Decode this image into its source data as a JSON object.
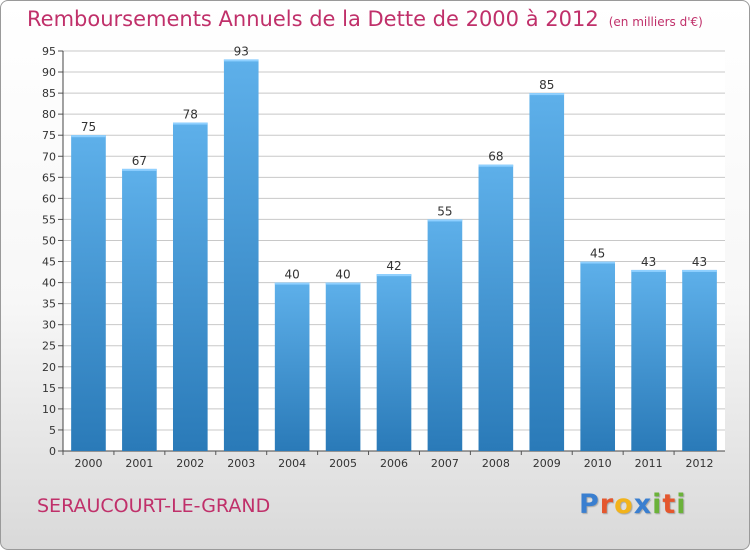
{
  "header": {
    "title": "Remboursements Annuels de la Dette de 2000 à 2012",
    "subtitle": "(en milliers d'€)"
  },
  "footer": {
    "city": "SERAUCOURT-LE-GRAND",
    "logo_letters": [
      {
        "ch": "P",
        "color": "#3a7fd0"
      },
      {
        "ch": "r",
        "color": "#e4572e"
      },
      {
        "ch": "o",
        "color": "#f2b31b"
      },
      {
        "ch": "x",
        "color": "#3a7fd0"
      },
      {
        "ch": "i",
        "color": "#6bb23a"
      },
      {
        "ch": "t",
        "color": "#e4572e"
      },
      {
        "ch": "i",
        "color": "#6bb23a"
      }
    ]
  },
  "colors": {
    "bar_top": "#5eb0ea",
    "bar_bottom": "#2a7ab8",
    "grid": "#c8c8c8",
    "title": "#c0306a"
  },
  "chart_data": {
    "type": "bar",
    "categories": [
      "2000",
      "2001",
      "2002",
      "2003",
      "2004",
      "2005",
      "2006",
      "2007",
      "2008",
      "2009",
      "2010",
      "2011",
      "2012"
    ],
    "values": [
      75,
      67,
      78,
      93,
      40,
      40,
      42,
      55,
      68,
      85,
      45,
      43,
      43
    ],
    "title": "Remboursements Annuels de la Dette de 2000 à 2012",
    "ylim": [
      0,
      95
    ],
    "ytick_step": 5,
    "grid": true,
    "data_labels": true
  }
}
